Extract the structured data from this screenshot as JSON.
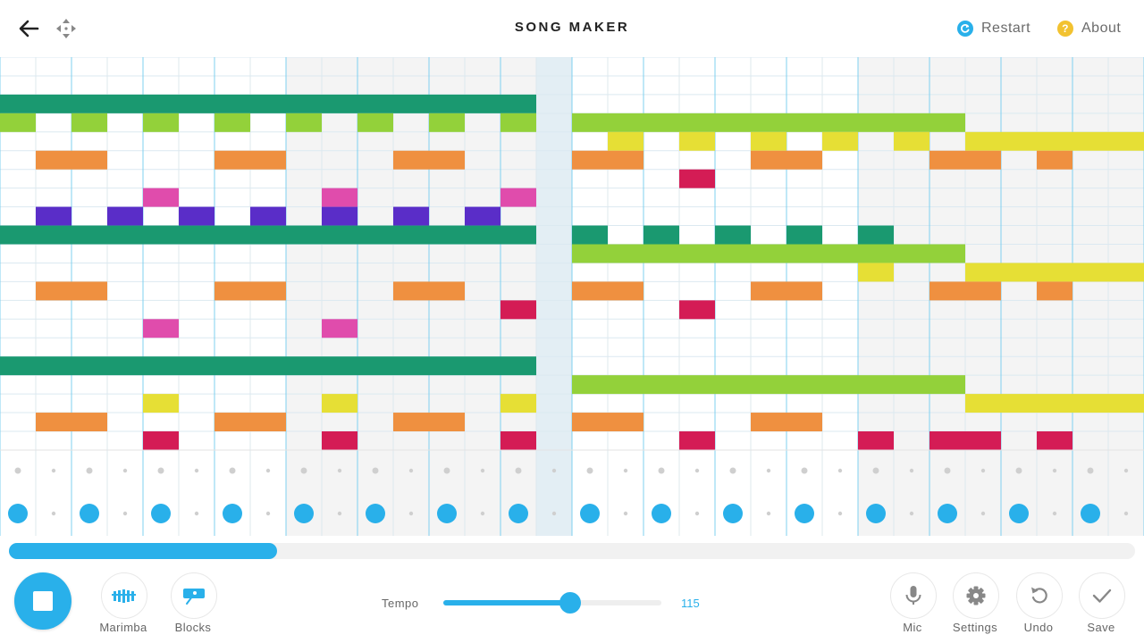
{
  "header": {
    "back_icon": "arrow-left-icon",
    "move_icon": "move-arrows-icon",
    "title": "SONG MAKER",
    "restart_label": "Restart",
    "about_label": "About",
    "restart_icon": "restart-icon",
    "about_icon": "question-icon",
    "about_icon_glyph": "?",
    "restart_color": "#29b0ea",
    "about_color": "#f2c230"
  },
  "colors": {
    "accent": "#29b0ea",
    "shade": "#f4f4f4",
    "playhead": "#e3eef4",
    "dark_green": "#1a9970",
    "light_green": "#93d13a",
    "yellow": "#e6df35",
    "orange": "#ef9040",
    "crimson": "#d41c55",
    "magenta": "#e04cac",
    "purple": "#5a2dc8"
  },
  "melody": {
    "rows": 21,
    "columns": 32,
    "playhead_column": 15,
    "notes": [
      {
        "row": 2,
        "from": 0,
        "to": 14,
        "color": "dark_green"
      },
      {
        "row": 3,
        "from": 0,
        "to": 0,
        "color": "light_green"
      },
      {
        "row": 3,
        "from": 2,
        "to": 2,
        "color": "light_green"
      },
      {
        "row": 3,
        "from": 4,
        "to": 4,
        "color": "light_green"
      },
      {
        "row": 3,
        "from": 6,
        "to": 6,
        "color": "light_green"
      },
      {
        "row": 3,
        "from": 8,
        "to": 8,
        "color": "light_green"
      },
      {
        "row": 3,
        "from": 10,
        "to": 10,
        "color": "light_green"
      },
      {
        "row": 3,
        "from": 12,
        "to": 12,
        "color": "light_green"
      },
      {
        "row": 3,
        "from": 14,
        "to": 14,
        "color": "light_green"
      },
      {
        "row": 3,
        "from": 16,
        "to": 26,
        "color": "light_green"
      },
      {
        "row": 4,
        "from": 17,
        "to": 17,
        "color": "yellow"
      },
      {
        "row": 4,
        "from": 19,
        "to": 19,
        "color": "yellow"
      },
      {
        "row": 4,
        "from": 21,
        "to": 21,
        "color": "yellow"
      },
      {
        "row": 4,
        "from": 23,
        "to": 23,
        "color": "yellow"
      },
      {
        "row": 4,
        "from": 25,
        "to": 25,
        "color": "yellow"
      },
      {
        "row": 4,
        "from": 27,
        "to": 31,
        "color": "yellow"
      },
      {
        "row": 5,
        "from": 1,
        "to": 2,
        "color": "orange"
      },
      {
        "row": 5,
        "from": 6,
        "to": 7,
        "color": "orange"
      },
      {
        "row": 5,
        "from": 11,
        "to": 12,
        "color": "orange"
      },
      {
        "row": 5,
        "from": 16,
        "to": 17,
        "color": "orange"
      },
      {
        "row": 5,
        "from": 21,
        "to": 22,
        "color": "orange"
      },
      {
        "row": 5,
        "from": 26,
        "to": 27,
        "color": "orange"
      },
      {
        "row": 5,
        "from": 29,
        "to": 29,
        "color": "orange"
      },
      {
        "row": 6,
        "from": 19,
        "to": 19,
        "color": "crimson"
      },
      {
        "row": 7,
        "from": 4,
        "to": 4,
        "color": "magenta"
      },
      {
        "row": 7,
        "from": 9,
        "to": 9,
        "color": "magenta"
      },
      {
        "row": 7,
        "from": 14,
        "to": 14,
        "color": "magenta"
      },
      {
        "row": 8,
        "from": 1,
        "to": 1,
        "color": "purple"
      },
      {
        "row": 8,
        "from": 3,
        "to": 3,
        "color": "purple"
      },
      {
        "row": 8,
        "from": 5,
        "to": 5,
        "color": "purple"
      },
      {
        "row": 8,
        "from": 7,
        "to": 7,
        "color": "purple"
      },
      {
        "row": 8,
        "from": 9,
        "to": 9,
        "color": "purple"
      },
      {
        "row": 8,
        "from": 11,
        "to": 11,
        "color": "purple"
      },
      {
        "row": 8,
        "from": 13,
        "to": 13,
        "color": "purple"
      },
      {
        "row": 9,
        "from": 0,
        "to": 14,
        "color": "dark_green"
      },
      {
        "row": 9,
        "from": 16,
        "to": 16,
        "color": "dark_green"
      },
      {
        "row": 9,
        "from": 18,
        "to": 18,
        "color": "dark_green"
      },
      {
        "row": 9,
        "from": 20,
        "to": 20,
        "color": "dark_green"
      },
      {
        "row": 9,
        "from": 22,
        "to": 22,
        "color": "dark_green"
      },
      {
        "row": 9,
        "from": 24,
        "to": 24,
        "color": "dark_green"
      },
      {
        "row": 10,
        "from": 16,
        "to": 26,
        "color": "light_green"
      },
      {
        "row": 11,
        "from": 24,
        "to": 24,
        "color": "yellow"
      },
      {
        "row": 11,
        "from": 27,
        "to": 31,
        "color": "yellow"
      },
      {
        "row": 12,
        "from": 1,
        "to": 2,
        "color": "orange"
      },
      {
        "row": 12,
        "from": 6,
        "to": 7,
        "color": "orange"
      },
      {
        "row": 12,
        "from": 11,
        "to": 12,
        "color": "orange"
      },
      {
        "row": 12,
        "from": 16,
        "to": 17,
        "color": "orange"
      },
      {
        "row": 12,
        "from": 21,
        "to": 22,
        "color": "orange"
      },
      {
        "row": 12,
        "from": 26,
        "to": 27,
        "color": "orange"
      },
      {
        "row": 12,
        "from": 29,
        "to": 29,
        "color": "orange"
      },
      {
        "row": 13,
        "from": 14,
        "to": 14,
        "color": "crimson"
      },
      {
        "row": 13,
        "from": 19,
        "to": 19,
        "color": "crimson"
      },
      {
        "row": 14,
        "from": 4,
        "to": 4,
        "color": "magenta"
      },
      {
        "row": 14,
        "from": 9,
        "to": 9,
        "color": "magenta"
      },
      {
        "row": 16,
        "from": 0,
        "to": 14,
        "color": "dark_green"
      },
      {
        "row": 17,
        "from": 16,
        "to": 26,
        "color": "light_green"
      },
      {
        "row": 18,
        "from": 4,
        "to": 4,
        "color": "yellow"
      },
      {
        "row": 18,
        "from": 9,
        "to": 9,
        "color": "yellow"
      },
      {
        "row": 18,
        "from": 14,
        "to": 14,
        "color": "yellow"
      },
      {
        "row": 18,
        "from": 27,
        "to": 31,
        "color": "yellow"
      },
      {
        "row": 19,
        "from": 1,
        "to": 2,
        "color": "orange"
      },
      {
        "row": 19,
        "from": 6,
        "to": 7,
        "color": "orange"
      },
      {
        "row": 19,
        "from": 11,
        "to": 12,
        "color": "orange"
      },
      {
        "row": 19,
        "from": 16,
        "to": 17,
        "color": "orange"
      },
      {
        "row": 19,
        "from": 21,
        "to": 22,
        "color": "orange"
      },
      {
        "row": 20,
        "from": 4,
        "to": 4,
        "color": "crimson"
      },
      {
        "row": 20,
        "from": 9,
        "to": 9,
        "color": "crimson"
      },
      {
        "row": 20,
        "from": 14,
        "to": 14,
        "color": "crimson"
      },
      {
        "row": 20,
        "from": 19,
        "to": 19,
        "color": "crimson"
      },
      {
        "row": 20,
        "from": 24,
        "to": 24,
        "color": "crimson"
      },
      {
        "row": 20,
        "from": 26,
        "to": 27,
        "color": "crimson"
      },
      {
        "row": 20,
        "from": 29,
        "to": 29,
        "color": "crimson"
      }
    ]
  },
  "rhythm": {
    "kick_columns": [
      0,
      2,
      4,
      6,
      8,
      10,
      12,
      14,
      16,
      18,
      20,
      22,
      24,
      26,
      28,
      30
    ]
  },
  "progress": {
    "fraction": 0.238
  },
  "footer": {
    "play_state": "stop",
    "stop_icon": "stop-icon",
    "instrument_label": "Marimba",
    "instrument_icon": "marimba-icon",
    "percussion_label": "Blocks",
    "percussion_icon": "blocks-icon",
    "tempo_label": "Tempo",
    "tempo_value": "115",
    "tempo_fraction": 0.58,
    "mic_label": "Mic",
    "mic_icon": "mic-icon",
    "settings_label": "Settings",
    "settings_icon": "gear-icon",
    "undo_label": "Undo",
    "undo_icon": "undo-icon",
    "save_label": "Save",
    "save_icon": "check-icon"
  }
}
